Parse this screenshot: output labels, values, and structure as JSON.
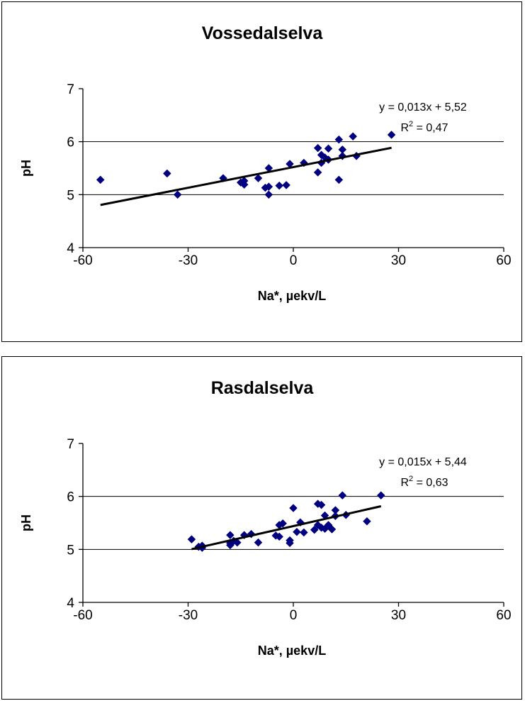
{
  "chart_data": [
    {
      "type": "scatter",
      "title": "Vossedalselva",
      "xlabel": "Na*, µekv/L",
      "ylabel": "pH",
      "xlim": [
        -60,
        60
      ],
      "ylim": [
        4,
        7
      ],
      "xticks": [
        "-60",
        "-30",
        "0",
        "30",
        "60"
      ],
      "yticks": [
        "4",
        "5",
        "6",
        "7"
      ],
      "grid": "horizontal major",
      "marker": "diamond",
      "marker_color": "#000080",
      "trendline": {
        "type": "linear",
        "slope": 0.013,
        "intercept": 5.52,
        "x_range": [
          -55,
          28
        ]
      },
      "equation": "y = 0,013x + 5,52",
      "r2_prefix": "R",
      "r2_exp": "2",
      "r2_value": " = 0,47",
      "points": [
        [
          -55,
          5.28
        ],
        [
          -36,
          5.4
        ],
        [
          -33,
          5.0
        ],
        [
          -20,
          5.31
        ],
        [
          -15,
          5.23
        ],
        [
          -14,
          5.26
        ],
        [
          -14,
          5.19
        ],
        [
          -10,
          5.31
        ],
        [
          -8,
          5.13
        ],
        [
          -7,
          5.15
        ],
        [
          -7,
          5.5
        ],
        [
          -7,
          5.0
        ],
        [
          -4,
          5.17
        ],
        [
          -2,
          5.18
        ],
        [
          -1,
          5.58
        ],
        [
          3,
          5.6
        ],
        [
          7,
          5.88
        ],
        [
          7,
          5.42
        ],
        [
          8,
          5.75
        ],
        [
          8,
          5.6
        ],
        [
          9,
          5.7
        ],
        [
          10,
          5.66
        ],
        [
          10,
          5.87
        ],
        [
          13,
          6.04
        ],
        [
          14,
          5.85
        ],
        [
          14,
          5.73
        ],
        [
          13,
          5.28
        ],
        [
          17,
          6.1
        ],
        [
          18,
          5.73
        ],
        [
          28,
          6.13
        ]
      ]
    },
    {
      "type": "scatter",
      "title": "Rasdalselva",
      "xlabel": "Na*, µekv/L",
      "ylabel": "pH",
      "xlim": [
        -60,
        60
      ],
      "ylim": [
        4,
        7
      ],
      "xticks": [
        "-60",
        "-30",
        "0",
        "30",
        "60"
      ],
      "yticks": [
        "4",
        "5",
        "6",
        "7"
      ],
      "grid": "horizontal major",
      "marker": "diamond",
      "marker_color": "#000080",
      "trendline": {
        "type": "linear",
        "slope": 0.015,
        "intercept": 5.44,
        "x_range": [
          -29,
          25
        ]
      },
      "equation": "y = 0,015x + 5,44",
      "r2_prefix": "R",
      "r2_exp": "2",
      "r2_value": " = 0,63",
      "points": [
        [
          -29,
          5.19
        ],
        [
          -27,
          5.05
        ],
        [
          -26,
          5.07
        ],
        [
          -26,
          5.03
        ],
        [
          -18,
          5.27
        ],
        [
          -18,
          5.12
        ],
        [
          -18,
          5.08
        ],
        [
          -17,
          5.16
        ],
        [
          -16,
          5.13
        ],
        [
          -14,
          5.27
        ],
        [
          -12,
          5.29
        ],
        [
          -10,
          5.13
        ],
        [
          -5,
          5.26
        ],
        [
          -4,
          5.46
        ],
        [
          -4,
          5.24
        ],
        [
          -3,
          5.49
        ],
        [
          -1,
          5.12
        ],
        [
          -1,
          5.17
        ],
        [
          0,
          5.78
        ],
        [
          1,
          5.33
        ],
        [
          2,
          5.51
        ],
        [
          3,
          5.32
        ],
        [
          6,
          5.37
        ],
        [
          7,
          5.46
        ],
        [
          7,
          5.86
        ],
        [
          8,
          5.84
        ],
        [
          8,
          5.41
        ],
        [
          9,
          5.64
        ],
        [
          9,
          5.39
        ],
        [
          10,
          5.46
        ],
        [
          11,
          5.38
        ],
        [
          12,
          5.74
        ],
        [
          12,
          5.63
        ],
        [
          14,
          6.02
        ],
        [
          15,
          5.65
        ],
        [
          21,
          5.53
        ],
        [
          25,
          6.02
        ]
      ]
    }
  ]
}
